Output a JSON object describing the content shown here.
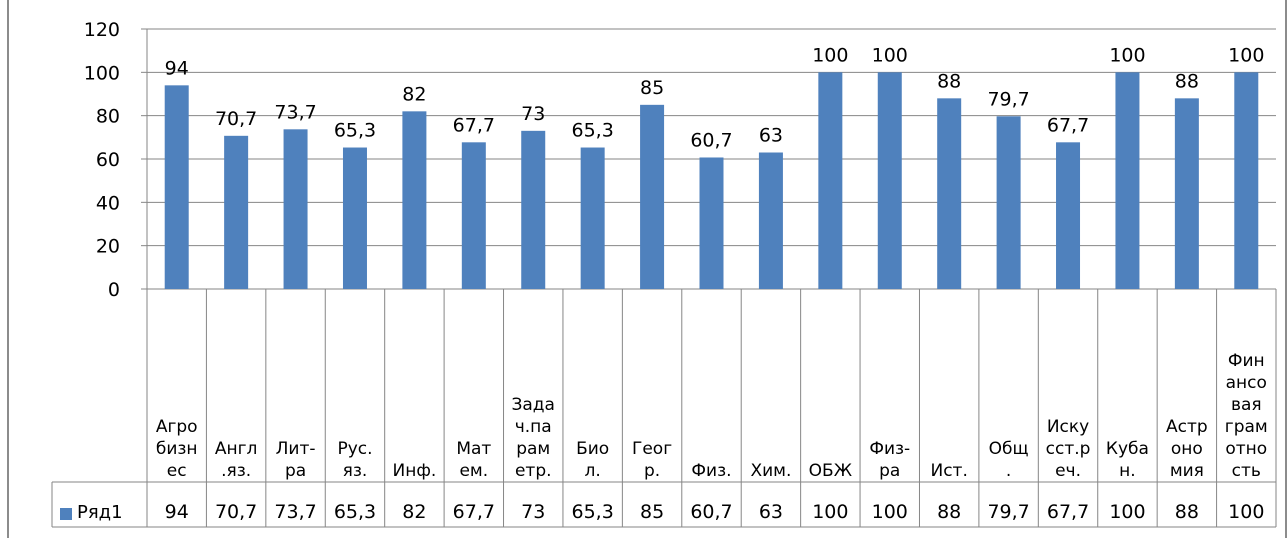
{
  "chart_data": {
    "type": "bar",
    "categories": [
      [
        "Агро",
        "бизн",
        "ес"
      ],
      [
        "Англ",
        ".яз."
      ],
      [
        "Лит-",
        "ра"
      ],
      [
        "Рус.",
        "яз."
      ],
      [
        "Инф."
      ],
      [
        "Мат",
        "ем."
      ],
      [
        "Зада",
        "ч.па",
        "рам",
        "етр."
      ],
      [
        "Био",
        "л."
      ],
      [
        "Геог",
        "р."
      ],
      [
        "Физ."
      ],
      [
        "Хим."
      ],
      [
        "ОБЖ"
      ],
      [
        "Физ-",
        "ра"
      ],
      [
        "Ист."
      ],
      [
        "Общ",
        "."
      ],
      [
        "Иску",
        "сст.р",
        "еч."
      ],
      [
        "Куба",
        "н."
      ],
      [
        "Астр",
        "оно",
        "мия"
      ],
      [
        "Фин",
        "ансо",
        "вая",
        "грам",
        "отно",
        "сть"
      ]
    ],
    "series": [
      {
        "name": "Ряд1",
        "values": [
          94,
          70.7,
          73.7,
          65.3,
          82,
          67.7,
          73,
          65.3,
          85,
          60.7,
          63,
          100,
          100,
          88,
          79.7,
          67.7,
          100,
          88,
          100
        ],
        "labels": [
          "94",
          "70,7",
          "73,7",
          "65,3",
          "82",
          "67,7",
          "73",
          "65,3",
          "85",
          "60,7",
          "63",
          "100",
          "100",
          "88",
          "79,7",
          "67,7",
          "100",
          "88",
          "100"
        ]
      }
    ],
    "yticks": [
      "0",
      "20",
      "40",
      "60",
      "80",
      "100",
      "120"
    ],
    "ylim": [
      0,
      120
    ],
    "grid": true,
    "legend": "data-table",
    "colors": {
      "bar": "#4f81bd",
      "grid": "#868686",
      "axis": "#868686",
      "frame": "#8c8c8c"
    }
  }
}
